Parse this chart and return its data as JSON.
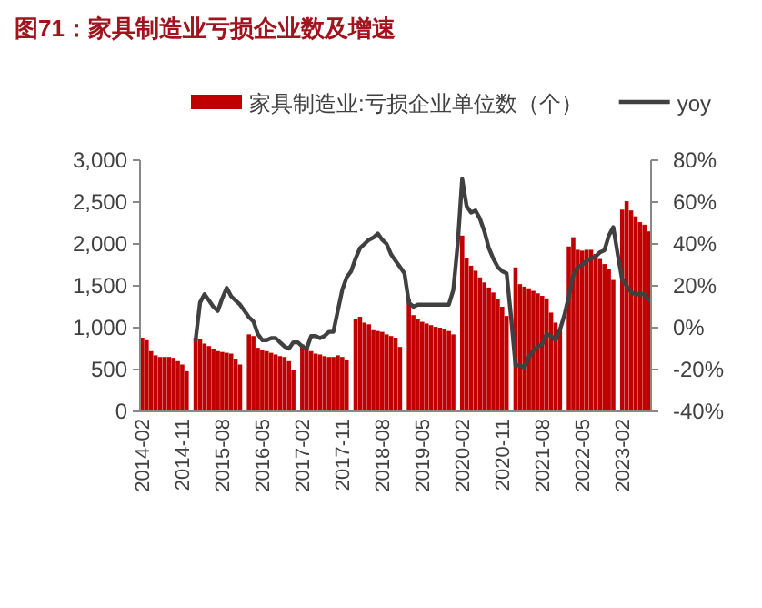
{
  "chart_data": {
    "type": "bar",
    "title": "图71：家具制造业亏损企业数及增速",
    "categories": [
      "2014-02",
      null,
      null,
      null,
      null,
      null,
      null,
      null,
      null,
      "2014-11",
      null,
      null,
      null,
      null,
      null,
      null,
      null,
      null,
      "2015-08",
      null,
      null,
      null,
      null,
      null,
      null,
      null,
      null,
      "2016-05",
      null,
      null,
      null,
      null,
      null,
      null,
      null,
      null,
      "2017-02",
      null,
      null,
      null,
      null,
      null,
      null,
      null,
      null,
      "2017-11",
      null,
      null,
      null,
      null,
      null,
      null,
      null,
      null,
      "2018-08",
      null,
      null,
      null,
      null,
      null,
      null,
      null,
      null,
      "2019-05",
      null,
      null,
      null,
      null,
      null,
      null,
      null,
      null,
      "2020-02",
      null,
      null,
      null,
      null,
      null,
      null,
      null,
      null,
      "2020-11",
      null,
      null,
      null,
      null,
      null,
      null,
      null,
      null,
      "2021-08",
      null,
      null,
      null,
      null,
      null,
      null,
      null,
      null,
      "2022-05",
      null,
      null,
      null,
      null,
      null,
      null,
      null,
      null,
      "2023-02",
      null,
      null,
      null,
      null,
      null,
      null
    ],
    "series": [
      {
        "name": "家具制造业:亏损企业单位数（个）",
        "color": "#c00000",
        "values": [
          880,
          850,
          720,
          670,
          650,
          650,
          650,
          640,
          600,
          560,
          480,
          null,
          880,
          860,
          810,
          780,
          750,
          720,
          710,
          700,
          690,
          630,
          560,
          null,
          920,
          900,
          760,
          730,
          720,
          700,
          680,
          660,
          650,
          600,
          500,
          null,
          800,
          780,
          720,
          690,
          680,
          660,
          650,
          650,
          670,
          650,
          620,
          null,
          1100,
          1130,
          1060,
          1040,
          970,
          960,
          950,
          920,
          900,
          880,
          770,
          null,
          1340,
          1150,
          1100,
          1070,
          1050,
          1030,
          1010,
          1000,
          980,
          960,
          920,
          null,
          2100,
          1830,
          1740,
          1680,
          1600,
          1540,
          1480,
          1420,
          1340,
          1250,
          1140,
          null,
          1720,
          1520,
          1490,
          1470,
          1440,
          1410,
          1380,
          1350,
          1180,
          1060,
          980,
          null,
          1970,
          2080,
          1930,
          1920,
          1930,
          1930,
          1880,
          1820,
          1760,
          1700,
          1570,
          null,
          2410,
          2510,
          2400,
          2330,
          2260,
          2230,
          2150
        ]
      },
      {
        "name": "yoy",
        "type": "line",
        "axis": "y2",
        "color": "#404040",
        "values": [
          null,
          null,
          null,
          null,
          null,
          null,
          null,
          null,
          null,
          null,
          null,
          null,
          -6,
          12,
          16,
          13,
          10,
          8,
          14,
          19,
          15,
          13,
          11,
          8,
          5,
          3,
          -3,
          -6,
          -6,
          -5,
          -5,
          -7,
          -9,
          -10,
          -7,
          -7,
          -9,
          -10,
          -4,
          -4,
          -5,
          -4,
          -2,
          -2,
          8,
          18,
          24,
          27,
          33,
          38,
          40,
          42,
          43,
          45,
          42,
          40,
          35,
          32,
          29,
          26,
          12,
          10,
          11,
          11,
          11,
          11,
          11,
          11,
          11,
          11,
          18,
          40,
          71,
          58,
          55,
          56,
          52,
          46,
          38,
          33,
          29,
          27,
          26,
          5,
          -18,
          -18,
          -19,
          -14,
          -11,
          -9,
          -8,
          -3,
          -4,
          -6,
          -1,
          6,
          15,
          25,
          29,
          30,
          32,
          33,
          34,
          36,
          37,
          44,
          48,
          35,
          23,
          20,
          17,
          16,
          16,
          16,
          13
        ]
      }
    ],
    "ylim": [
      0,
      3000
    ],
    "yticks": [
      0,
      500,
      {
        "value": 1000,
        "label": "1,000"
      },
      {
        "value": 1500,
        "label": "1,500"
      },
      {
        "value": 2000,
        "label": "2,000"
      },
      {
        "value": 2500,
        "label": "2,500"
      },
      {
        "value": 3000,
        "label": "3,000"
      }
    ],
    "y2lim": [
      -40,
      80
    ],
    "y2ticks": [
      {
        "value": -40,
        "label": "-40%"
      },
      {
        "value": -20,
        "label": "-20%"
      },
      {
        "value": 0,
        "label": "0%"
      },
      {
        "value": 20,
        "label": "20%"
      },
      {
        "value": 40,
        "label": "40%"
      },
      {
        "value": 60,
        "label": "60%"
      },
      {
        "value": 80,
        "label": "80%"
      }
    ],
    "legend": "top",
    "grid": false
  }
}
